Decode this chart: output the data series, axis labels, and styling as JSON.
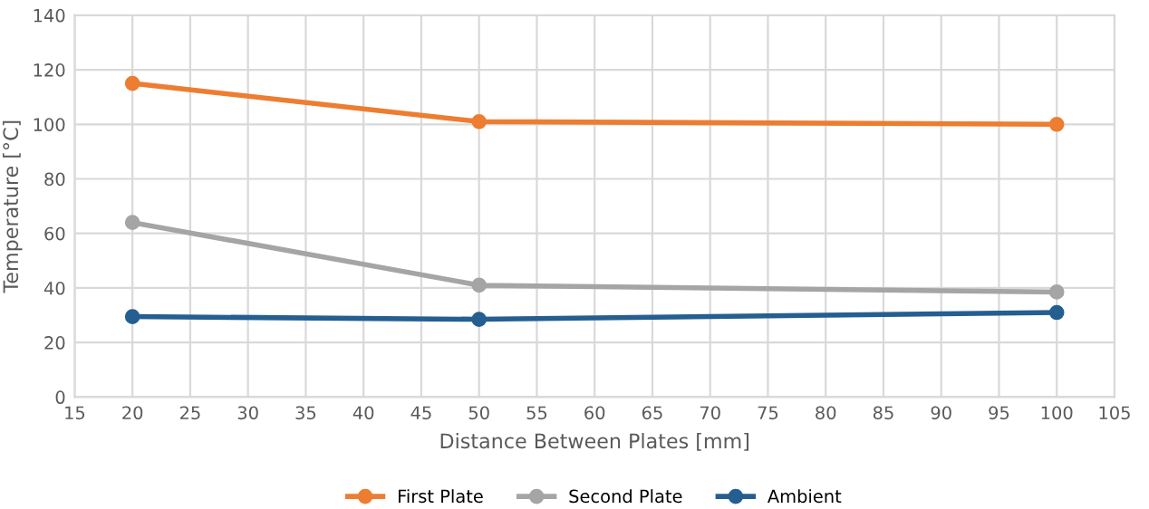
{
  "chart_data": {
    "type": "line",
    "xlabel": "Distance Between Plates [mm]",
    "ylabel": "Temperature [°C]",
    "x": [
      20,
      50,
      100
    ],
    "series": [
      {
        "name": "First Plate",
        "color": "#ed7d31",
        "values": [
          115,
          101,
          100
        ]
      },
      {
        "name": "Second Plate",
        "color": "#a5a5a5",
        "values": [
          64,
          41,
          38.5
        ]
      },
      {
        "name": "Ambient",
        "color": "#255e91",
        "values": [
          29.5,
          28.5,
          31
        ]
      }
    ],
    "xlim": [
      15,
      105
    ],
    "xticks": [
      15,
      20,
      25,
      30,
      35,
      40,
      45,
      50,
      55,
      60,
      65,
      70,
      75,
      80,
      85,
      90,
      95,
      100,
      105
    ],
    "ylim": [
      0,
      140
    ],
    "yticks": [
      0,
      20,
      40,
      60,
      80,
      100,
      120,
      140
    ],
    "grid": true,
    "legend": "bottom",
    "marker": "circle",
    "line_style": "solid"
  }
}
